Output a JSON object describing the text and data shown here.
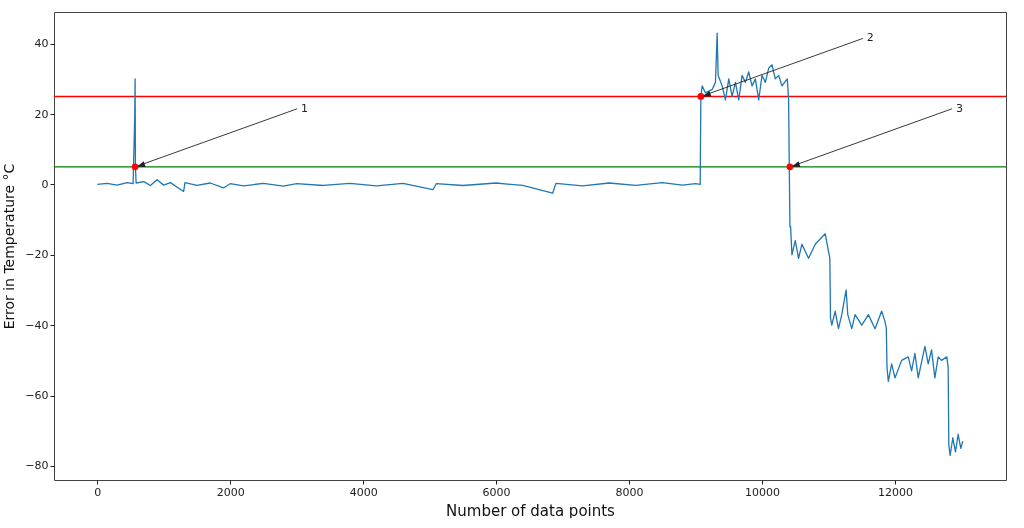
{
  "chart_data": {
    "type": "line",
    "xlabel": "Number of data points",
    "ylabel": "Error in Temperature °C",
    "xlim": [
      -650,
      13670
    ],
    "ylim": [
      -84,
      49
    ],
    "xticks": [
      0,
      2000,
      4000,
      6000,
      8000,
      10000,
      12000
    ],
    "yticks": [
      -80,
      -60,
      -40,
      -20,
      0,
      20,
      40
    ],
    "grid": false,
    "series": [
      {
        "color": "#1f77b4",
        "x": [
          0,
          150,
          300,
          450,
          540,
          565,
          570,
          575,
          585,
          700,
          800,
          900,
          1000,
          1100,
          1300,
          1320,
          1500,
          1700,
          1900,
          2000,
          2200,
          2500,
          2800,
          3000,
          3400,
          3800,
          4200,
          4600,
          5050,
          5100,
          5500,
          6000,
          6400,
          6850,
          6900,
          7300,
          7700,
          8100,
          8500,
          8800,
          9000,
          9070,
          9080,
          9100,
          9150,
          9250,
          9300,
          9325,
          9340,
          9400,
          9450,
          9500,
          9550,
          9600,
          9650,
          9700,
          9750,
          9800,
          9850,
          9900,
          9950,
          10000,
          10050,
          10100,
          10150,
          10200,
          10250,
          10300,
          10380,
          10400,
          10410,
          10420,
          10430,
          10450,
          10500,
          10550,
          10600,
          10700,
          10800,
          10900,
          10950,
          11000,
          11020,
          11030,
          11050,
          11100,
          11150,
          11200,
          11265,
          11290,
          11350,
          11400,
          11500,
          11600,
          11700,
          11800,
          11850,
          11870,
          11880,
          11900,
          11950,
          12000,
          12100,
          12200,
          12250,
          12300,
          12350,
          12450,
          12500,
          12550,
          12600,
          12650,
          12700,
          12780,
          12800,
          12810,
          12830,
          12870,
          12910,
          12950,
          12990,
          13020
        ],
        "values": [
          0,
          0.3,
          -0.2,
          0.5,
          0.2,
          20,
          30,
          5,
          0.4,
          0.8,
          -0.3,
          1.3,
          -0.2,
          0.5,
          -2,
          0.5,
          -0.3,
          0.4,
          -1,
          0.2,
          -0.4,
          0.3,
          -0.5,
          0.2,
          -0.3,
          0.3,
          -0.4,
          0.3,
          -1.5,
          0.2,
          -0.3,
          0.4,
          -0.3,
          -2.5,
          0.3,
          -0.4,
          0.4,
          -0.3,
          0.5,
          -0.2,
          0.2,
          0,
          25,
          28,
          26,
          27,
          29,
          43,
          31,
          28,
          24,
          30,
          25,
          29,
          24,
          31,
          29,
          32,
          28,
          30,
          24,
          31,
          29,
          33,
          34,
          30,
          31,
          28,
          30,
          24,
          5,
          -12,
          -12,
          -20,
          -16,
          -21,
          -17,
          -21,
          -17,
          -15,
          -14,
          -19,
          -21,
          -38,
          -40,
          -36,
          -41,
          -37,
          -30,
          -37,
          -41,
          -37,
          -40,
          -37,
          -41,
          -36,
          -39,
          -41,
          -52,
          -56,
          -51,
          -55,
          -50,
          -49,
          -53,
          -48,
          -55,
          -46,
          -51,
          -47,
          -55,
          -49,
          -50,
          -49,
          -52,
          -74,
          -77,
          -72,
          -76,
          -71,
          -75,
          -73
        ]
      },
      {
        "type": "scatter",
        "color": "#ff0000",
        "marker": "circle",
        "x": [
          570,
          9080,
          10420
        ],
        "values": [
          5,
          25,
          5
        ]
      }
    ],
    "ref_lines": [
      {
        "axis": "y",
        "value": 25,
        "color": "#ff0000"
      },
      {
        "axis": "y",
        "value": 5,
        "color": "#008000"
      }
    ],
    "annotations": [
      {
        "text": "1",
        "x": 570,
        "y": 5
      },
      {
        "text": "2",
        "x": 9080,
        "y": 25
      },
      {
        "text": "3",
        "x": 10420,
        "y": 5
      }
    ]
  }
}
